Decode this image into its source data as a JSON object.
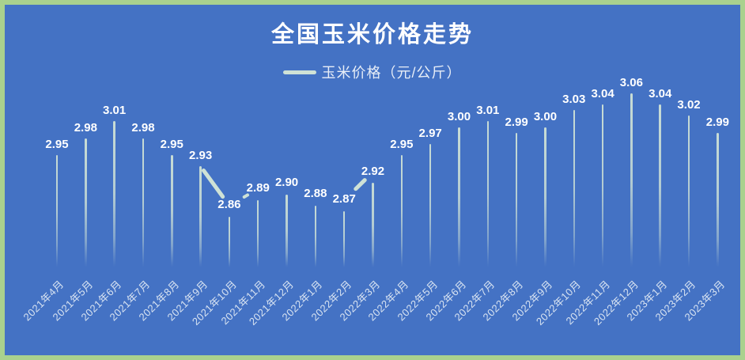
{
  "title": "全国玉米价格走势",
  "legend": {
    "label": "玉米价格（元/公斤）"
  },
  "colors": {
    "background": "#4472c4",
    "border": "#a9d18e",
    "series": "#cfe2d6",
    "title_text": "#ffffff",
    "data_label_text": "#ffffff",
    "axis_label_text": "#d9e4f2"
  },
  "chart_data": {
    "type": "line",
    "title": "全国玉米价格走势",
    "style": "vertical drop lines from each point with value labels, line segments mostly hidden",
    "legend_position": "top-center",
    "grid": false,
    "ylim": [
      2.75,
      3.1
    ],
    "series": [
      {
        "name": "玉米价格（元/公斤）",
        "values": [
          2.95,
          2.98,
          3.01,
          2.98,
          2.95,
          2.93,
          2.86,
          2.89,
          2.9,
          2.88,
          2.87,
          2.92,
          2.95,
          2.97,
          3.0,
          3.01,
          2.99,
          3.0,
          3.03,
          3.04,
          3.06,
          3.04,
          3.02,
          2.99
        ]
      }
    ],
    "categories": [
      "2021年4月",
      "2021年5月",
      "2021年6月",
      "2021年7月",
      "2021年8月",
      "2021年9月",
      "2021年10月",
      "2021年11月",
      "2021年12月",
      "2022年1月",
      "2022年2月",
      "2022年3月",
      "2022年4月",
      "2022年5月",
      "2022年6月",
      "2022年7月",
      "2022年8月",
      "2022年9月",
      "2022年10月",
      "2022年11月",
      "2022年12月",
      "2023年1月",
      "2023年2月",
      "2023年3月"
    ],
    "moved_label_indices": [
      6,
      7,
      8,
      9,
      10,
      11
    ],
    "visible_connectors": [
      {
        "from": 5,
        "to": 6,
        "t0": 0.06,
        "t1": 0.8,
        "w": 5
      },
      {
        "from": 6,
        "to": 7,
        "t0": 0.48,
        "t1": 0.7,
        "w": 4
      },
      {
        "from": 10,
        "to": 11,
        "t0": 0.36,
        "t1": 0.78,
        "w": 5
      }
    ]
  }
}
